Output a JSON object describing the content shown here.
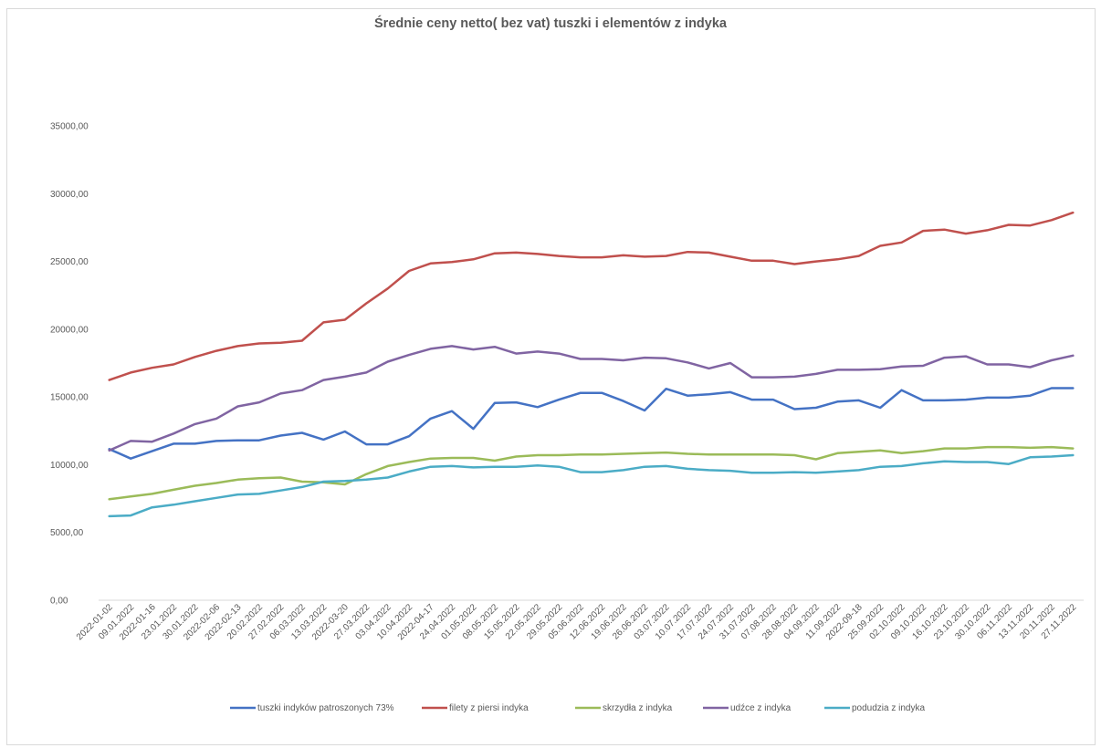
{
  "chart_data": {
    "type": "line",
    "title": "Średnie ceny netto( bez vat) tuszki i elementów z indyka",
    "xlabel": "",
    "ylabel": "",
    "ylim": [
      0,
      35000
    ],
    "y_ticks": [
      0,
      5000,
      10000,
      15000,
      20000,
      25000,
      30000,
      35000
    ],
    "y_tick_labels": [
      "0,00",
      "5000,00",
      "10000,00",
      "15000,00",
      "20000,00",
      "25000,00",
      "30000,00",
      "35000,00"
    ],
    "grid": false,
    "legend_position": "bottom",
    "categories": [
      "2022-01-02",
      "09.01.2022",
      "2022-01-16",
      "23.01.2022",
      "30.01.2022",
      "2022-02-06",
      "2022-02-13",
      "20.02.2022",
      "27.02.2022",
      "06.03.2022",
      "13.03.2022",
      "2022-03-20",
      "27.03.2022",
      "03.04.2022",
      "10.04.2022",
      "2022-04-17",
      "24.04.2022",
      "01.05.2022",
      "08.05.2022",
      "15.05.2022",
      "22.05.2022",
      "29.05.2022",
      "05.06.2022",
      "12.06.2022",
      "19.06.2022",
      "26.06.2022",
      "03.07.2022",
      "10.07.2022",
      "17.07.2022",
      "24.07.2022",
      "31.07.2022",
      "07.08.2022",
      "28.08.2022",
      "04.09.2022",
      "11.09.2022",
      "2022-09-18",
      "25.09.2022",
      "02.10.2022",
      "09.10.2022",
      "16.10.2022",
      "23.10.2022",
      "30.10.2022",
      "06.11.2022",
      "13.11.2022",
      "20.11.2022",
      "27.11.2022"
    ],
    "series": [
      {
        "name": "tuszki indyków patroszonych 73%",
        "color": "#4472c4",
        "values": [
          11150,
          10450,
          11000,
          11550,
          11550,
          11750,
          11800,
          11800,
          12150,
          12350,
          11850,
          12450,
          11500,
          11500,
          12100,
          13400,
          13950,
          12650,
          14550,
          14600,
          14250,
          14800,
          15300,
          15300,
          14700,
          14000,
          15600,
          15100,
          15200,
          15350,
          14800,
          14800,
          14100,
          14200,
          14650,
          14750,
          14200,
          15500,
          14750,
          14750,
          14800,
          14950,
          14950,
          15100,
          15650,
          15650
        ]
      },
      {
        "name": "filety z piersi indyka",
        "color": "#c0504d",
        "values": [
          16250,
          16800,
          17150,
          17400,
          17950,
          18400,
          18750,
          18950,
          19000,
          19150,
          20500,
          20700,
          21900,
          23000,
          24300,
          24850,
          24950,
          25150,
          25600,
          25650,
          25550,
          25400,
          25300,
          25300,
          25450,
          25350,
          25400,
          25700,
          25650,
          25350,
          25050,
          25050,
          24800,
          25000,
          25150,
          25400,
          26150,
          26400,
          27250,
          27350,
          27050,
          27300,
          27700,
          27650,
          28050,
          28600
        ]
      },
      {
        "name": "skrzydła z indyka",
        "color": "#9bbb59",
        "values": [
          7450,
          7650,
          7850,
          8150,
          8450,
          8650,
          8900,
          9000,
          9050,
          8750,
          8700,
          8550,
          9300,
          9900,
          10200,
          10450,
          10500,
          10500,
          10300,
          10600,
          10700,
          10700,
          10750,
          10750,
          10800,
          10850,
          10900,
          10800,
          10750,
          10750,
          10750,
          10750,
          10700,
          10400,
          10850,
          10950,
          11050,
          10850,
          11000,
          11200,
          11200,
          11300,
          11300,
          11250,
          11300,
          11200
        ]
      },
      {
        "name": "udźce z indyka",
        "color": "#8064a2",
        "values": [
          11050,
          11750,
          11700,
          12300,
          13000,
          13400,
          14300,
          14600,
          15250,
          15500,
          16250,
          16500,
          16800,
          17600,
          18100,
          18550,
          18750,
          18500,
          18700,
          18200,
          18350,
          18200,
          17800,
          17800,
          17700,
          17900,
          17850,
          17550,
          17100,
          17500,
          16450,
          16450,
          16500,
          16700,
          17000,
          17000,
          17050,
          17250,
          17300,
          17900,
          18000,
          17400,
          17400,
          17200,
          17700,
          18050
        ]
      },
      {
        "name": "podudzia z indyka",
        "color": "#4bacc6",
        "values": [
          6200,
          6250,
          6850,
          7050,
          7300,
          7550,
          7800,
          7850,
          8100,
          8350,
          8750,
          8800,
          8900,
          9050,
          9500,
          9850,
          9900,
          9800,
          9850,
          9850,
          9950,
          9850,
          9450,
          9450,
          9600,
          9850,
          9900,
          9700,
          9600,
          9550,
          9400,
          9400,
          9450,
          9400,
          9500,
          9600,
          9850,
          9900,
          10100,
          10250,
          10200,
          10200,
          10050,
          10550,
          10600,
          10700
        ]
      }
    ]
  }
}
